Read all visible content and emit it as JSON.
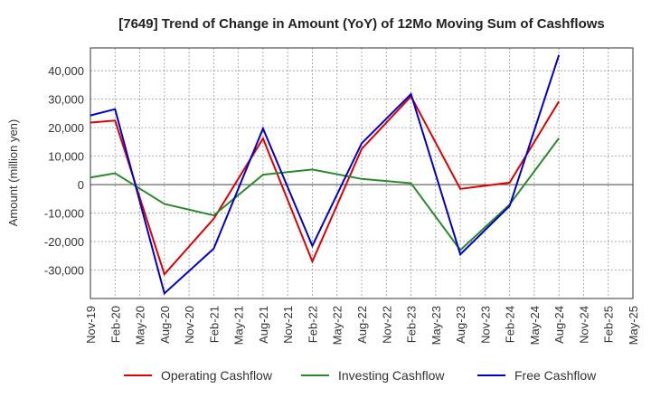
{
  "chart_data": {
    "type": "line",
    "title": "[7649]  Trend of Change in Amount (YoY) of 12Mo Moving Sum of Cashflows",
    "ylabel": "Amount (million yen)",
    "xlabel": "",
    "ylim": [
      -40000,
      48000
    ],
    "yticks": [
      -30000,
      -20000,
      -10000,
      0,
      10000,
      20000,
      30000,
      40000
    ],
    "ytick_labels": [
      "-30,000",
      "-20,000",
      "-10,000",
      "0",
      "10,000",
      "20,000",
      "30,000",
      "40,000"
    ],
    "categories": [
      "Nov-19",
      "Feb-20",
      "May-20",
      "Aug-20",
      "Nov-20",
      "Feb-21",
      "May-21",
      "Aug-21",
      "Nov-21",
      "Feb-22",
      "May-22",
      "Aug-22",
      "Nov-22",
      "Feb-23",
      "May-23",
      "Aug-23",
      "Nov-23",
      "Feb-24",
      "May-24",
      "Aug-24",
      "Nov-24",
      "Feb-25",
      "May-25"
    ],
    "grid": true,
    "legend_position": "bottom",
    "series": [
      {
        "name": "Operating Cashflow",
        "color": "#e00000",
        "values": [
          21800,
          22500,
          null,
          -31500,
          null,
          -12000,
          null,
          16200,
          null,
          -27000,
          null,
          12500,
          null,
          31000,
          null,
          -1500,
          null,
          700,
          null,
          29200,
          null,
          null,
          null
        ]
      },
      {
        "name": "Investing Cashflow",
        "color": "#2a8a2a",
        "values": [
          2500,
          4000,
          null,
          -6800,
          null,
          -10800,
          null,
          3500,
          null,
          5300,
          null,
          2000,
          null,
          500,
          null,
          -23000,
          null,
          -7000,
          null,
          16300,
          null,
          null,
          null
        ]
      },
      {
        "name": "Free Cashflow",
        "color": "#0000cc",
        "values": [
          24300,
          26500,
          null,
          -38200,
          null,
          -22500,
          null,
          19700,
          null,
          -21500,
          null,
          14500,
          null,
          31800,
          null,
          -24500,
          null,
          -7500,
          null,
          45500,
          null,
          null,
          null
        ]
      }
    ]
  }
}
